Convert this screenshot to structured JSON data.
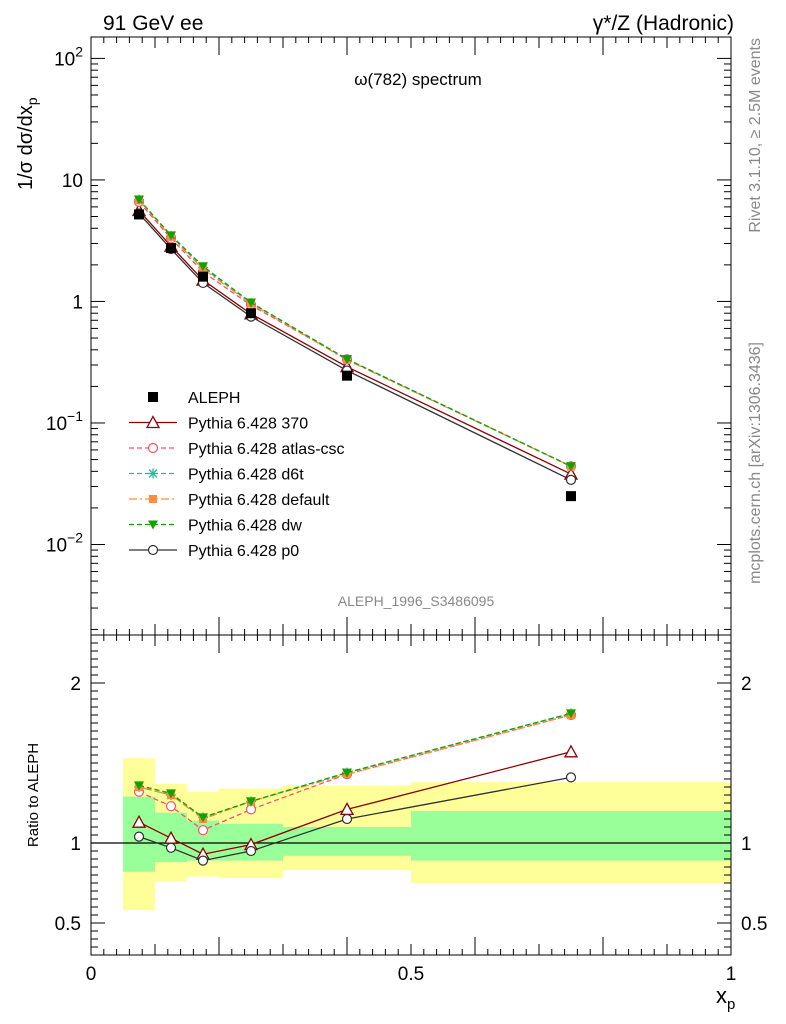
{
  "header": {
    "left": "91 GeV ee",
    "right": "γ*/Z (Hadronic)"
  },
  "side_text": {
    "rivet": "Rivet 3.1.10, ≥ 2.5M events",
    "mcplots": "mcplots.cern.ch [arXiv:1306.3436]"
  },
  "chart_data": [
    {
      "type": "line",
      "panel": "main",
      "title": "ω(782) spectrum",
      "watermark": "ALEPH_1996_S3486095",
      "ylabel": "1/σ dσ/dx_p",
      "yscale": "log",
      "ylim": [
        0.0018,
        150
      ],
      "xlim": [
        0,
        1
      ],
      "y_ticks": [
        {
          "v": 100,
          "label": "10",
          "sup": "2"
        },
        {
          "v": 10,
          "label": "10",
          "sup": ""
        },
        {
          "v": 1,
          "label": "1",
          "sup": ""
        },
        {
          "v": 0.1,
          "label": "10",
          "sup": "−1"
        },
        {
          "v": 0.01,
          "label": "10",
          "sup": "−2"
        }
      ],
      "legend_position": "lower-left",
      "data": {
        "name": "ALEPH",
        "x": [
          0.075,
          0.125,
          0.175,
          0.25,
          0.4,
          0.75
        ],
        "y": [
          5.2,
          2.75,
          1.6,
          0.8,
          0.245,
          0.025
        ]
      },
      "series": [
        {
          "name": "Pythia 6.428 370",
          "color": "#8b0000",
          "dash": "",
          "marker": "triangle-open",
          "x": [
            0.075,
            0.125,
            0.175,
            0.25,
            0.4,
            0.75
          ],
          "y": [
            5.6,
            2.85,
            1.5,
            0.79,
            0.29,
            0.038
          ]
        },
        {
          "name": "Pythia 6.428 atlas-csc",
          "color": "#ff4f6a",
          "dash": "5,3",
          "marker": "circle-open",
          "x": [
            0.075,
            0.125,
            0.175,
            0.25,
            0.4,
            0.75
          ],
          "y": [
            6.6,
            3.3,
            1.75,
            0.93,
            0.335,
            0.044
          ]
        },
        {
          "name": "Pythia 6.428 d6t",
          "color": "#1fbf9a",
          "dash": "5,3",
          "marker": "star",
          "x": [
            0.075,
            0.125,
            0.175,
            0.25,
            0.4,
            0.75
          ],
          "y": [
            6.9,
            3.45,
            1.9,
            0.97,
            0.335,
            0.044
          ]
        },
        {
          "name": "Pythia 6.428 default",
          "color": "#ff8c3a",
          "dash": "8,3,2,3",
          "marker": "square-filled",
          "x": [
            0.075,
            0.125,
            0.175,
            0.25,
            0.4,
            0.75
          ],
          "y": [
            6.8,
            3.4,
            1.85,
            0.96,
            0.33,
            0.044
          ]
        },
        {
          "name": "Pythia 6.428 dw",
          "color": "#16a000",
          "dash": "5,3",
          "marker": "triangle-down-filled",
          "x": [
            0.075,
            0.125,
            0.175,
            0.25,
            0.4,
            0.75
          ],
          "y": [
            6.9,
            3.5,
            1.95,
            0.98,
            0.335,
            0.044
          ]
        },
        {
          "name": "Pythia 6.428 p0",
          "color": "#303030",
          "dash": "",
          "marker": "circle-open",
          "x": [
            0.075,
            0.125,
            0.175,
            0.25,
            0.4,
            0.75
          ],
          "y": [
            5.3,
            2.7,
            1.42,
            0.75,
            0.27,
            0.034
          ]
        }
      ]
    },
    {
      "type": "line",
      "panel": "ratio",
      "ylabel": "Ratio to ALEPH",
      "xlabel": "x_p",
      "ylim": [
        0.3,
        2.3
      ],
      "xlim": [
        0,
        1
      ],
      "y_ticks": [
        0.5,
        1,
        2
      ],
      "x_ticks": [
        {
          "v": 0,
          "label": "0"
        },
        {
          "v": 0.5,
          "label": "0.5"
        },
        {
          "v": 1,
          "label": "1"
        }
      ],
      "bands": [
        {
          "x0": 0.05,
          "x1": 0.1,
          "yellow": [
            0.58,
            1.53
          ],
          "green": [
            0.82,
            1.29
          ]
        },
        {
          "x0": 0.1,
          "x1": 0.15,
          "yellow": [
            0.76,
            1.37
          ],
          "green": [
            0.88,
            1.19
          ]
        },
        {
          "x0": 0.15,
          "x1": 0.2,
          "yellow": [
            0.79,
            1.32
          ],
          "green": [
            0.89,
            1.14
          ]
        },
        {
          "x0": 0.2,
          "x1": 0.3,
          "yellow": [
            0.78,
            1.34
          ],
          "green": [
            0.89,
            1.12
          ]
        },
        {
          "x0": 0.3,
          "x1": 0.5,
          "yellow": [
            0.83,
            1.36
          ],
          "green": [
            0.92,
            1.1
          ]
        },
        {
          "x0": 0.5,
          "x1": 1.0,
          "yellow": [
            0.75,
            1.38
          ],
          "green": [
            0.89,
            1.2
          ]
        }
      ],
      "series": [
        {
          "name": "Pythia 6.428 370",
          "x": [
            0.075,
            0.125,
            0.175,
            0.25,
            0.4,
            0.75
          ],
          "y": [
            1.13,
            1.03,
            0.93,
            0.99,
            1.21,
            1.57
          ]
        },
        {
          "name": "Pythia 6.428 atlas-csc",
          "x": [
            0.075,
            0.125,
            0.175,
            0.25,
            0.4,
            0.75
          ],
          "y": [
            1.32,
            1.23,
            1.08,
            1.21,
            1.43,
            1.8
          ]
        },
        {
          "name": "Pythia 6.428 d6t",
          "x": [
            0.075,
            0.125,
            0.175,
            0.25,
            0.4,
            0.75
          ],
          "y": [
            1.35,
            1.3,
            1.16,
            1.26,
            1.44,
            1.81
          ]
        },
        {
          "name": "Pythia 6.428 default",
          "x": [
            0.075,
            0.125,
            0.175,
            0.25,
            0.4,
            0.75
          ],
          "y": [
            1.35,
            1.3,
            1.15,
            1.26,
            1.43,
            1.8
          ]
        },
        {
          "name": "Pythia 6.428 dw",
          "x": [
            0.075,
            0.125,
            0.175,
            0.25,
            0.4,
            0.75
          ],
          "y": [
            1.36,
            1.31,
            1.16,
            1.26,
            1.44,
            1.81
          ]
        },
        {
          "name": "Pythia 6.428 p0",
          "x": [
            0.075,
            0.125,
            0.175,
            0.25,
            0.4,
            0.75
          ],
          "y": [
            1.04,
            0.97,
            0.89,
            0.95,
            1.15,
            1.41
          ]
        }
      ]
    }
  ]
}
